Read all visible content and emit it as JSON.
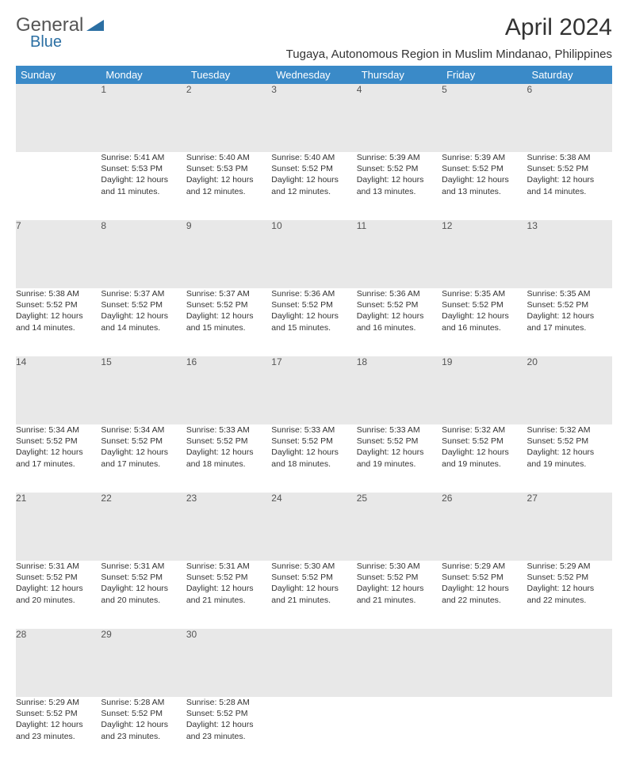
{
  "logo": {
    "text1": "General",
    "text2": "Blue",
    "color1": "#666666",
    "color2": "#2b6fa3"
  },
  "title": "April 2024",
  "location": "Tugaya, Autonomous Region in Muslim Mindanao, Philippines",
  "header_bg": "#3a8ac8",
  "daynum_bg": "#e8e8e8",
  "rule_color": "#2b6fa3",
  "day_headers": [
    "Sunday",
    "Monday",
    "Tuesday",
    "Wednesday",
    "Thursday",
    "Friday",
    "Saturday"
  ],
  "weeks": [
    {
      "nums": [
        "",
        "1",
        "2",
        "3",
        "4",
        "5",
        "6"
      ],
      "cells": [
        {
          "empty": true
        },
        {
          "sunrise": "Sunrise: 5:41 AM",
          "sunset": "Sunset: 5:53 PM",
          "dl1": "Daylight: 12 hours",
          "dl2": "and 11 minutes."
        },
        {
          "sunrise": "Sunrise: 5:40 AM",
          "sunset": "Sunset: 5:53 PM",
          "dl1": "Daylight: 12 hours",
          "dl2": "and 12 minutes."
        },
        {
          "sunrise": "Sunrise: 5:40 AM",
          "sunset": "Sunset: 5:52 PM",
          "dl1": "Daylight: 12 hours",
          "dl2": "and 12 minutes."
        },
        {
          "sunrise": "Sunrise: 5:39 AM",
          "sunset": "Sunset: 5:52 PM",
          "dl1": "Daylight: 12 hours",
          "dl2": "and 13 minutes."
        },
        {
          "sunrise": "Sunrise: 5:39 AM",
          "sunset": "Sunset: 5:52 PM",
          "dl1": "Daylight: 12 hours",
          "dl2": "and 13 minutes."
        },
        {
          "sunrise": "Sunrise: 5:38 AM",
          "sunset": "Sunset: 5:52 PM",
          "dl1": "Daylight: 12 hours",
          "dl2": "and 14 minutes."
        }
      ]
    },
    {
      "nums": [
        "7",
        "8",
        "9",
        "10",
        "11",
        "12",
        "13"
      ],
      "cells": [
        {
          "sunrise": "Sunrise: 5:38 AM",
          "sunset": "Sunset: 5:52 PM",
          "dl1": "Daylight: 12 hours",
          "dl2": "and 14 minutes."
        },
        {
          "sunrise": "Sunrise: 5:37 AM",
          "sunset": "Sunset: 5:52 PM",
          "dl1": "Daylight: 12 hours",
          "dl2": "and 14 minutes."
        },
        {
          "sunrise": "Sunrise: 5:37 AM",
          "sunset": "Sunset: 5:52 PM",
          "dl1": "Daylight: 12 hours",
          "dl2": "and 15 minutes."
        },
        {
          "sunrise": "Sunrise: 5:36 AM",
          "sunset": "Sunset: 5:52 PM",
          "dl1": "Daylight: 12 hours",
          "dl2": "and 15 minutes."
        },
        {
          "sunrise": "Sunrise: 5:36 AM",
          "sunset": "Sunset: 5:52 PM",
          "dl1": "Daylight: 12 hours",
          "dl2": "and 16 minutes."
        },
        {
          "sunrise": "Sunrise: 5:35 AM",
          "sunset": "Sunset: 5:52 PM",
          "dl1": "Daylight: 12 hours",
          "dl2": "and 16 minutes."
        },
        {
          "sunrise": "Sunrise: 5:35 AM",
          "sunset": "Sunset: 5:52 PM",
          "dl1": "Daylight: 12 hours",
          "dl2": "and 17 minutes."
        }
      ]
    },
    {
      "nums": [
        "14",
        "15",
        "16",
        "17",
        "18",
        "19",
        "20"
      ],
      "cells": [
        {
          "sunrise": "Sunrise: 5:34 AM",
          "sunset": "Sunset: 5:52 PM",
          "dl1": "Daylight: 12 hours",
          "dl2": "and 17 minutes."
        },
        {
          "sunrise": "Sunrise: 5:34 AM",
          "sunset": "Sunset: 5:52 PM",
          "dl1": "Daylight: 12 hours",
          "dl2": "and 17 minutes."
        },
        {
          "sunrise": "Sunrise: 5:33 AM",
          "sunset": "Sunset: 5:52 PM",
          "dl1": "Daylight: 12 hours",
          "dl2": "and 18 minutes."
        },
        {
          "sunrise": "Sunrise: 5:33 AM",
          "sunset": "Sunset: 5:52 PM",
          "dl1": "Daylight: 12 hours",
          "dl2": "and 18 minutes."
        },
        {
          "sunrise": "Sunrise: 5:33 AM",
          "sunset": "Sunset: 5:52 PM",
          "dl1": "Daylight: 12 hours",
          "dl2": "and 19 minutes."
        },
        {
          "sunrise": "Sunrise: 5:32 AM",
          "sunset": "Sunset: 5:52 PM",
          "dl1": "Daylight: 12 hours",
          "dl2": "and 19 minutes."
        },
        {
          "sunrise": "Sunrise: 5:32 AM",
          "sunset": "Sunset: 5:52 PM",
          "dl1": "Daylight: 12 hours",
          "dl2": "and 19 minutes."
        }
      ]
    },
    {
      "nums": [
        "21",
        "22",
        "23",
        "24",
        "25",
        "26",
        "27"
      ],
      "cells": [
        {
          "sunrise": "Sunrise: 5:31 AM",
          "sunset": "Sunset: 5:52 PM",
          "dl1": "Daylight: 12 hours",
          "dl2": "and 20 minutes."
        },
        {
          "sunrise": "Sunrise: 5:31 AM",
          "sunset": "Sunset: 5:52 PM",
          "dl1": "Daylight: 12 hours",
          "dl2": "and 20 minutes."
        },
        {
          "sunrise": "Sunrise: 5:31 AM",
          "sunset": "Sunset: 5:52 PM",
          "dl1": "Daylight: 12 hours",
          "dl2": "and 21 minutes."
        },
        {
          "sunrise": "Sunrise: 5:30 AM",
          "sunset": "Sunset: 5:52 PM",
          "dl1": "Daylight: 12 hours",
          "dl2": "and 21 minutes."
        },
        {
          "sunrise": "Sunrise: 5:30 AM",
          "sunset": "Sunset: 5:52 PM",
          "dl1": "Daylight: 12 hours",
          "dl2": "and 21 minutes."
        },
        {
          "sunrise": "Sunrise: 5:29 AM",
          "sunset": "Sunset: 5:52 PM",
          "dl1": "Daylight: 12 hours",
          "dl2": "and 22 minutes."
        },
        {
          "sunrise": "Sunrise: 5:29 AM",
          "sunset": "Sunset: 5:52 PM",
          "dl1": "Daylight: 12 hours",
          "dl2": "and 22 minutes."
        }
      ]
    },
    {
      "nums": [
        "28",
        "29",
        "30",
        "",
        "",
        "",
        ""
      ],
      "cells": [
        {
          "sunrise": "Sunrise: 5:29 AM",
          "sunset": "Sunset: 5:52 PM",
          "dl1": "Daylight: 12 hours",
          "dl2": "and 23 minutes."
        },
        {
          "sunrise": "Sunrise: 5:28 AM",
          "sunset": "Sunset: 5:52 PM",
          "dl1": "Daylight: 12 hours",
          "dl2": "and 23 minutes."
        },
        {
          "sunrise": "Sunrise: 5:28 AM",
          "sunset": "Sunset: 5:52 PM",
          "dl1": "Daylight: 12 hours",
          "dl2": "and 23 minutes."
        },
        {
          "empty": true
        },
        {
          "empty": true
        },
        {
          "empty": true
        },
        {
          "empty": true
        }
      ]
    }
  ]
}
